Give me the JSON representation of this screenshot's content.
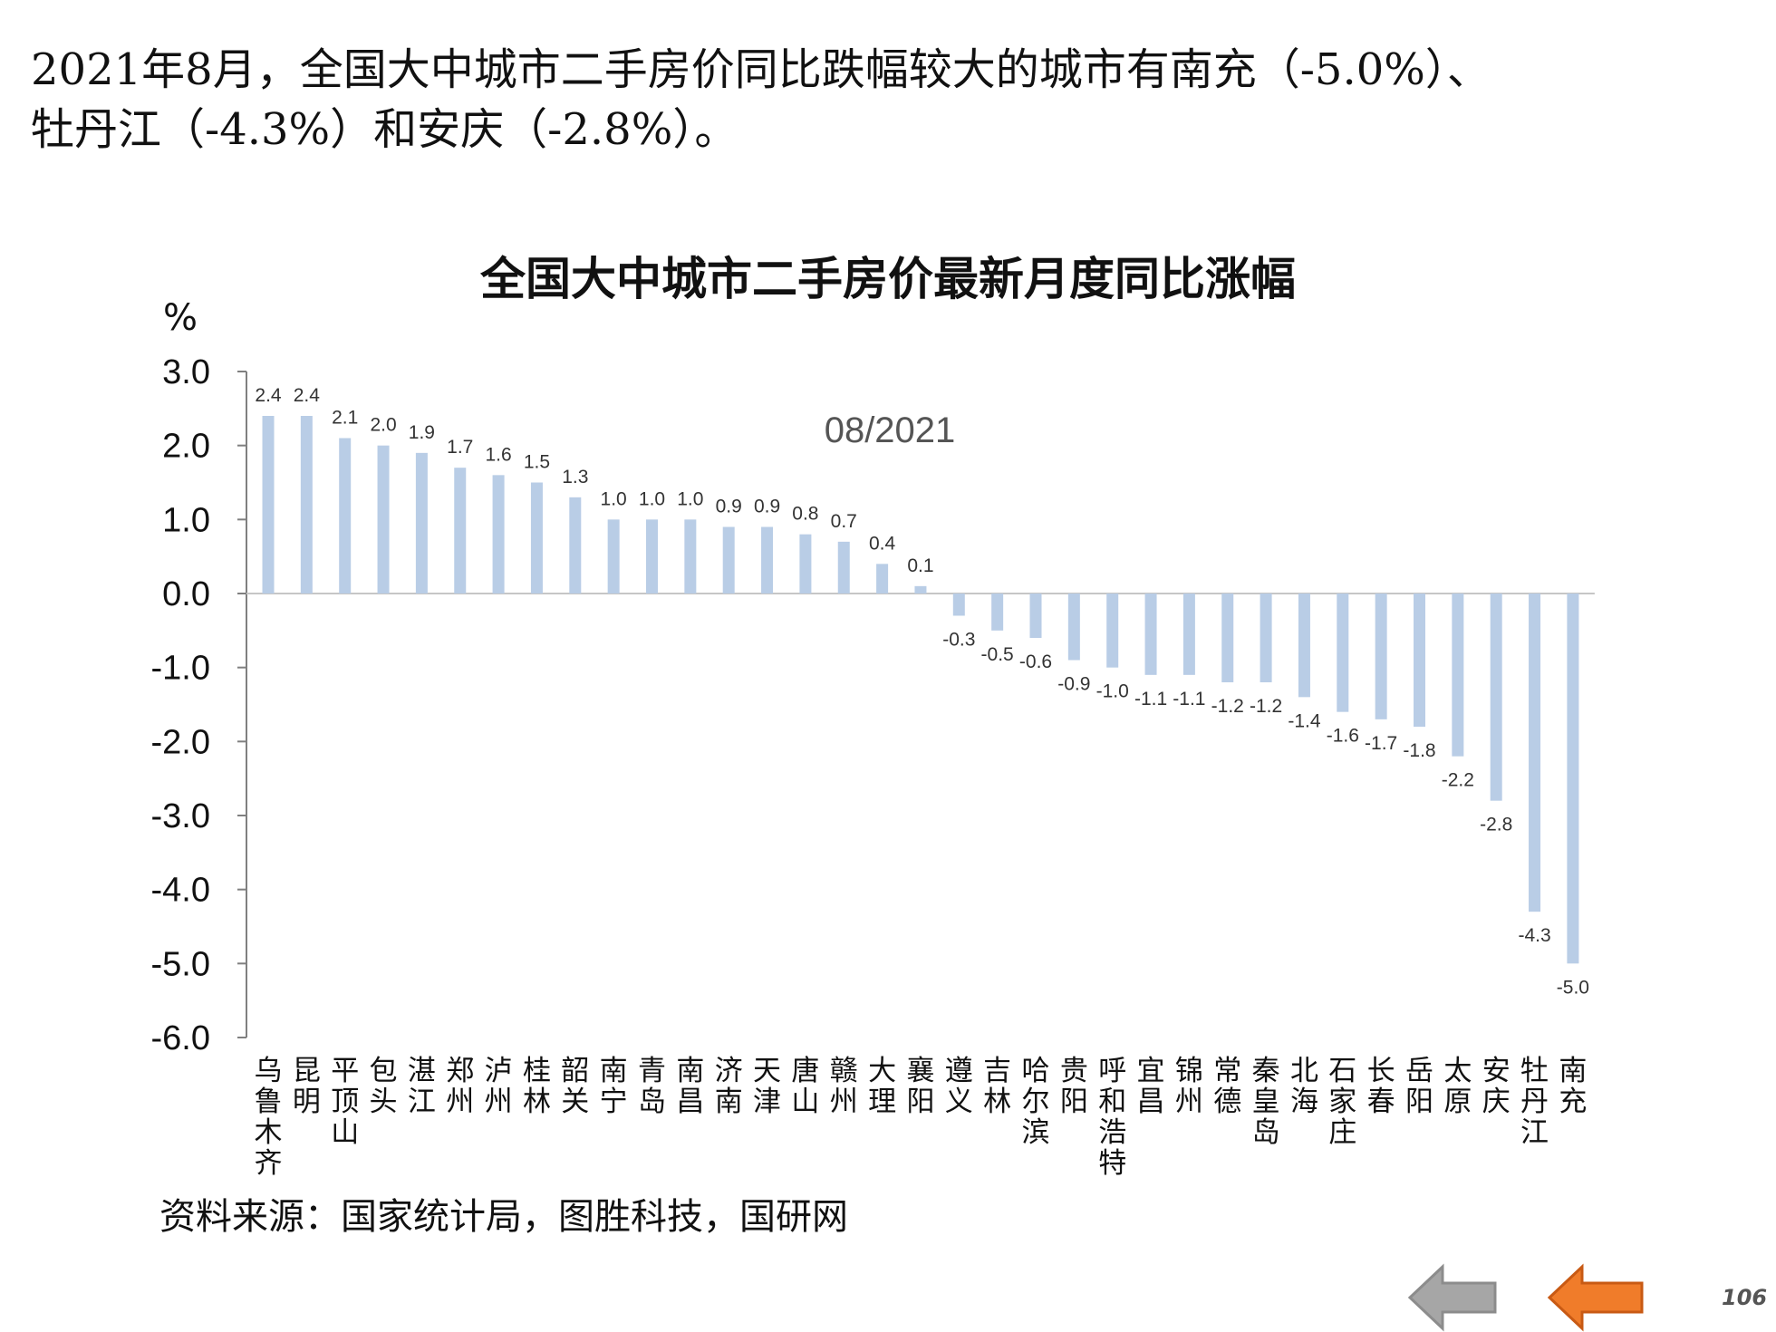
{
  "headline": {
    "line1": "2021年8月，全国大中城市二手房价同比跌幅较大的城市有南充（-5.0%）、",
    "line2": "牡丹江（-4.3%）和安庆（-2.8%）。"
  },
  "chart_data": {
    "type": "bar",
    "title": "全国大中城市二手房价最新月度同比涨幅",
    "ylabel": "%",
    "annotation": "08/2021",
    "ylim": [
      -6.0,
      3.0
    ],
    "yticks": [
      "3.0",
      "2.0",
      "1.0",
      "0.0",
      "-1.0",
      "-2.0",
      "-3.0",
      "-4.0",
      "-5.0",
      "-6.0"
    ],
    "bar_color": "#b9cde6",
    "categories": [
      "乌鲁木齐",
      "昆明",
      "平顶山",
      "包头",
      "湛江",
      "郑州",
      "泸州",
      "桂林",
      "韶关",
      "南宁",
      "青岛",
      "南昌",
      "济南",
      "天津",
      "唐山",
      "赣州",
      "大理",
      "襄阳",
      "遵义",
      "吉林",
      "哈尔滨",
      "贵阳",
      "呼和浩特",
      "宜昌",
      "锦州",
      "常德",
      "秦皇岛",
      "北海",
      "石家庄",
      "长春",
      "岳阳",
      "太原",
      "安庆",
      "牡丹江",
      "南充"
    ],
    "values": [
      2.4,
      2.4,
      2.1,
      2.0,
      1.9,
      1.7,
      1.6,
      1.5,
      1.3,
      1.0,
      1.0,
      1.0,
      0.9,
      0.9,
      0.8,
      0.7,
      0.4,
      0.1,
      -0.3,
      -0.5,
      -0.6,
      -0.9,
      -1.0,
      -1.1,
      -1.1,
      -1.2,
      -1.2,
      -1.4,
      -1.6,
      -1.7,
      -1.8,
      -2.2,
      -2.8,
      -4.3,
      -5.0
    ],
    "value_labels": [
      "2.4",
      "2.4",
      "2.1",
      "2.0",
      "1.9",
      "1.7",
      "1.6",
      "1.5",
      "1.3",
      "1.0",
      "1.0",
      "1.0",
      "0.9",
      "0.9",
      "0.8",
      "0.7",
      "0.4",
      "0.1",
      "-0.3",
      "-0.5",
      "-0.6",
      "-0.9",
      "-1.0",
      "-1.1",
      "-1.1",
      "-1.2",
      "-1.2",
      "-1.4",
      "-1.6",
      "-1.7",
      "-1.8",
      "-2.2",
      "-2.8",
      "-4.3",
      "-5.0"
    ]
  },
  "source": "资料来源：国家统计局，图胜科技，国研网",
  "nav": {
    "back_color": "#a6a6a6",
    "next_color": "#f07c2a"
  },
  "page_number": "106"
}
